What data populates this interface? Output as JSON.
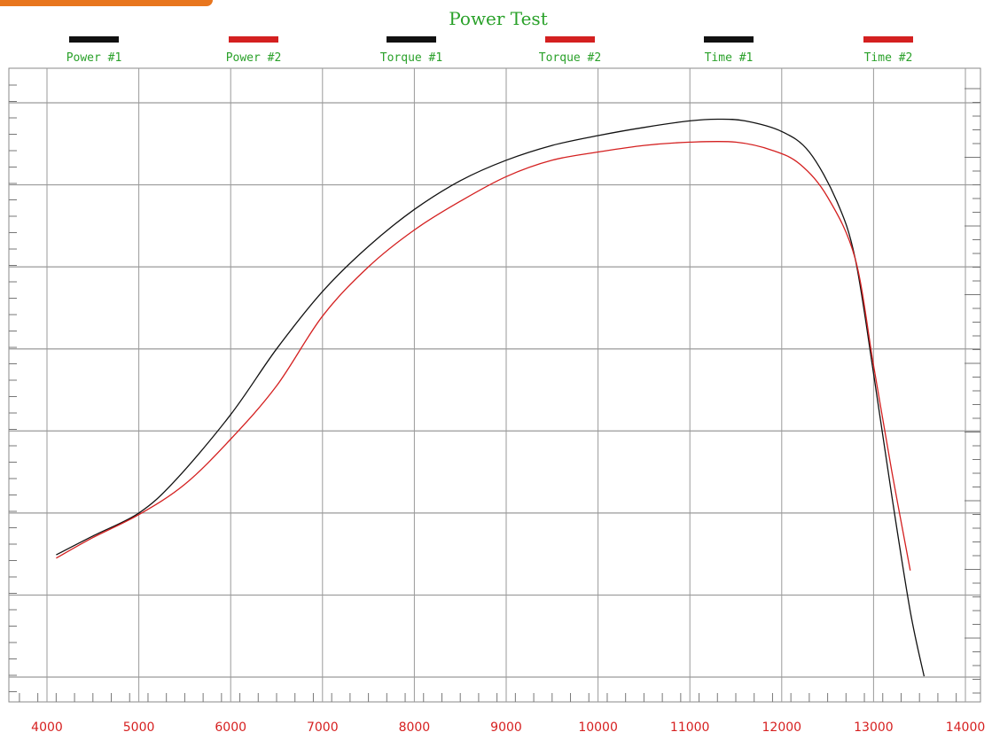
{
  "chart_data": {
    "type": "line",
    "title": "Power Test",
    "xlabel": "",
    "ylabel": "",
    "xlim": [
      3700,
      14000
    ],
    "ylim": [
      0,
      7
    ],
    "x_ticks": [
      4000,
      5000,
      6000,
      7000,
      8000,
      9000,
      10000,
      11000,
      12000,
      13000,
      14000
    ],
    "grid": true,
    "legend_position": "top",
    "legend": [
      {
        "label": "Power #1",
        "color": "#111111"
      },
      {
        "label": "Power #2",
        "color": "#d42020"
      },
      {
        "label": "Torque #1",
        "color": "#111111"
      },
      {
        "label": "Torque #2",
        "color": "#d42020"
      },
      {
        "label": "Time #1",
        "color": "#111111"
      },
      {
        "label": "Time #2",
        "color": "#d42020"
      }
    ],
    "series": [
      {
        "name": "Power #1",
        "color": "#111111",
        "points": [
          [
            4100,
            1.49
          ],
          [
            4500,
            1.72
          ],
          [
            5000,
            2.0
          ],
          [
            5400,
            2.4
          ],
          [
            6000,
            3.2
          ],
          [
            6500,
            4.0
          ],
          [
            7000,
            4.7
          ],
          [
            7500,
            5.25
          ],
          [
            8000,
            5.7
          ],
          [
            8500,
            6.05
          ],
          [
            9000,
            6.3
          ],
          [
            9500,
            6.48
          ],
          [
            10000,
            6.6
          ],
          [
            10500,
            6.7
          ],
          [
            11000,
            6.78
          ],
          [
            11300,
            6.8
          ],
          [
            11600,
            6.78
          ],
          [
            12000,
            6.65
          ],
          [
            12300,
            6.4
          ],
          [
            12600,
            5.8
          ],
          [
            12800,
            5.1
          ],
          [
            13000,
            3.7
          ],
          [
            13200,
            2.2
          ],
          [
            13400,
            0.8
          ],
          [
            13550,
            0.01
          ]
        ]
      },
      {
        "name": "Power #2",
        "color": "#d42020",
        "points": [
          [
            4100,
            1.45
          ],
          [
            4500,
            1.7
          ],
          [
            5000,
            1.98
          ],
          [
            5500,
            2.35
          ],
          [
            6000,
            2.9
          ],
          [
            6500,
            3.55
          ],
          [
            7000,
            4.4
          ],
          [
            7500,
            5.0
          ],
          [
            8000,
            5.45
          ],
          [
            8500,
            5.8
          ],
          [
            9000,
            6.1
          ],
          [
            9500,
            6.3
          ],
          [
            10000,
            6.4
          ],
          [
            10500,
            6.48
          ],
          [
            11000,
            6.52
          ],
          [
            11500,
            6.52
          ],
          [
            11900,
            6.42
          ],
          [
            12200,
            6.25
          ],
          [
            12500,
            5.85
          ],
          [
            12800,
            5.1
          ],
          [
            13000,
            3.8
          ],
          [
            13200,
            2.5
          ],
          [
            13400,
            1.3
          ]
        ]
      }
    ]
  }
}
